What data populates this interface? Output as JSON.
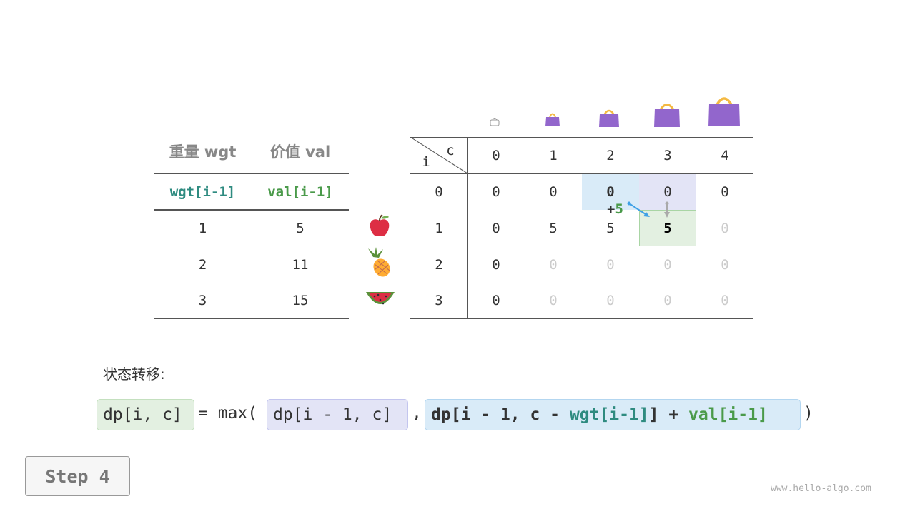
{
  "left_table": {
    "headers": [
      "重量 wgt",
      "价值 val"
    ],
    "subheaders": [
      "wgt[i-1]",
      "val[i-1]"
    ],
    "rows": [
      [
        "1",
        "5"
      ],
      [
        "2",
        "11"
      ],
      [
        "3",
        "15"
      ]
    ],
    "items": [
      "apple-icon",
      "pineapple-icon",
      "watermelon-icon"
    ]
  },
  "dp_table": {
    "corner_i": "i",
    "corner_c": "c",
    "col_headers": [
      "0",
      "1",
      "2",
      "3",
      "4"
    ],
    "row_headers": [
      "0",
      "1",
      "2",
      "3"
    ],
    "cells": [
      [
        "0",
        "0",
        "0",
        "0",
        "0"
      ],
      [
        "0",
        "5",
        "5",
        "5",
        "0"
      ],
      [
        "0",
        "0",
        "0",
        "0",
        "0"
      ],
      [
        "0",
        "0",
        "0",
        "0",
        "0"
      ]
    ],
    "bag_icons": [
      "bag-icon-size-0",
      "bag-icon-size-1",
      "bag-icon-size-2",
      "bag-icon-size-3",
      "bag-icon-size-4"
    ],
    "annotation": {
      "plus": "+",
      "value": "5"
    },
    "colors": {
      "blue_cell": "#d9ebf8",
      "purple_cell": "#e3e4f6",
      "green_cell": "#e3f0e1",
      "teal": "#2e8b80",
      "green": "#4a9a4a"
    }
  },
  "transition_label": "状态转移:",
  "formula": {
    "lhs": "dp[i, c]",
    "eq": "= max(",
    "opt1": "dp[i - 1, c]",
    "comma": ",",
    "opt2_a": "dp[i - 1, c - ",
    "opt2_wgt": "wgt[i-1]",
    "opt2_b": "] + ",
    "opt2_val": "val[i-1]",
    "close": ")"
  },
  "step_button": "Step 4",
  "watermark": "www.hello-algo.com"
}
